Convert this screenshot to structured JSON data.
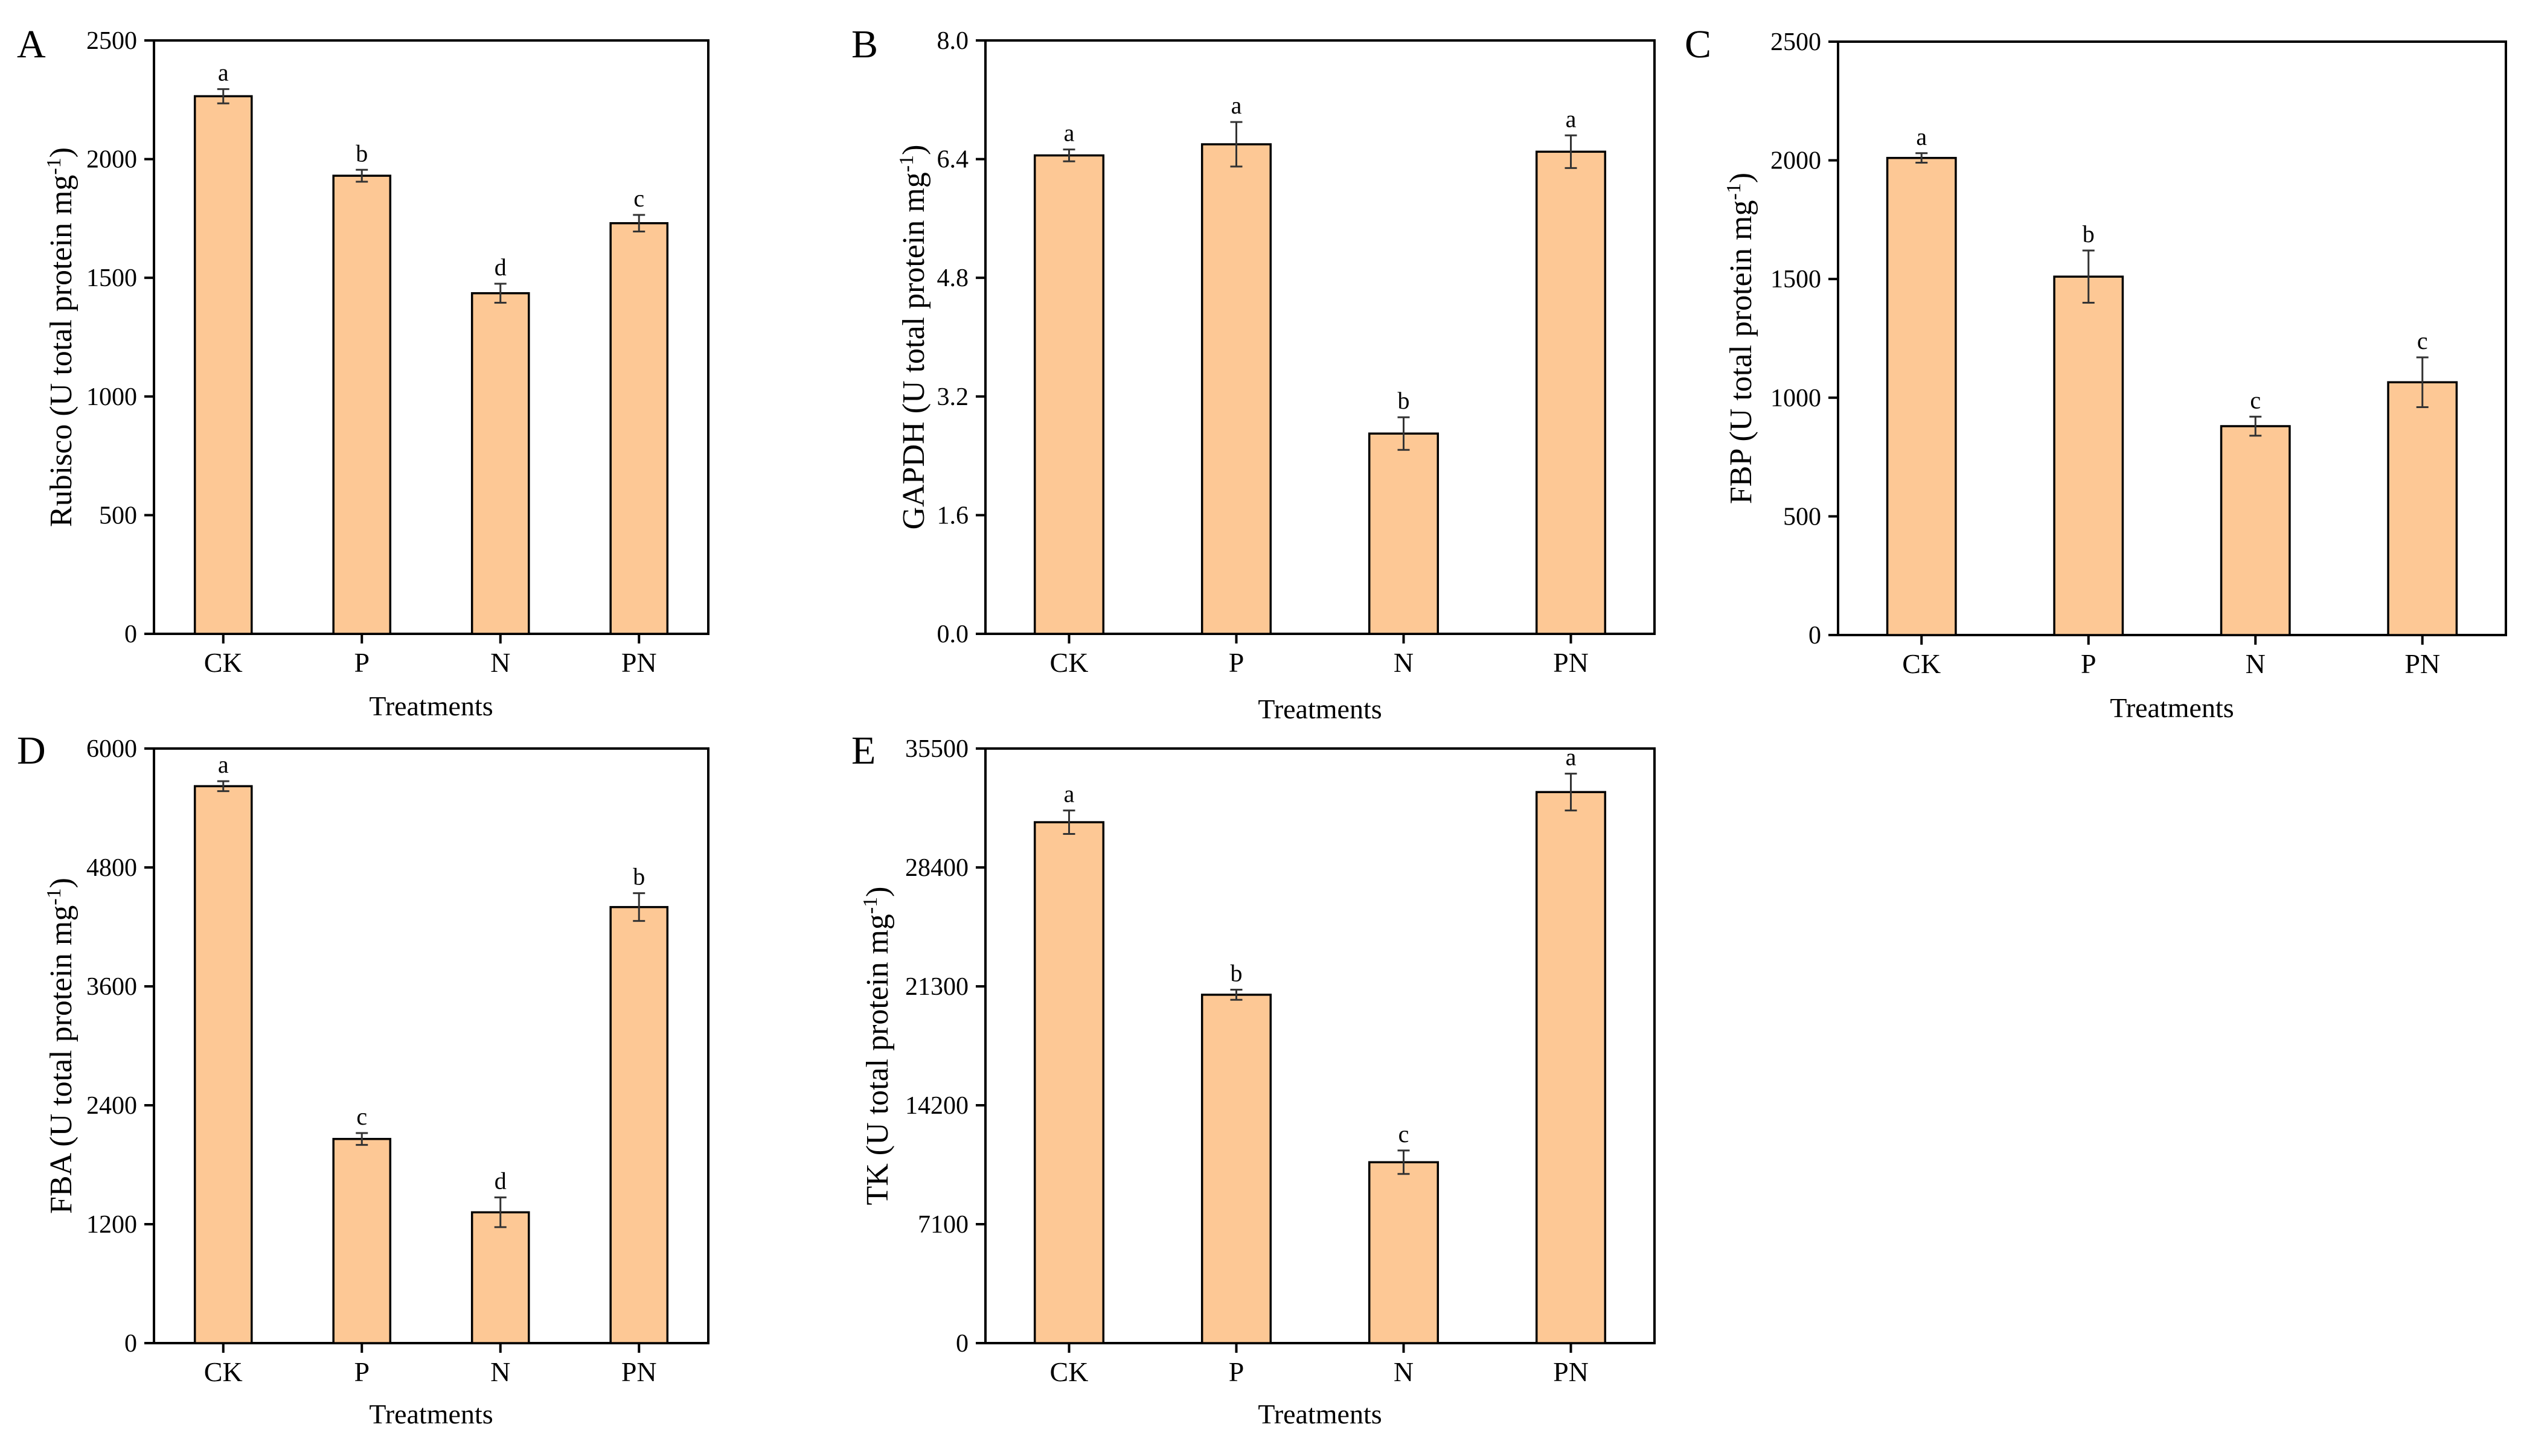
{
  "chart_data": [
    {
      "type": "bar",
      "panel": "A",
      "categories": [
        "CK",
        "P",
        "N",
        "PN"
      ],
      "values": [
        2265,
        1930,
        1435,
        1730
      ],
      "errors": [
        30,
        25,
        40,
        35
      ],
      "significance": [
        "a",
        "b",
        "d",
        "c"
      ],
      "ylabel": "Rubisco (U total protein mg",
      "ylabel_sup": "-1",
      "ylabel_close": ")",
      "xlabel": "Treatments",
      "ylim": [
        0,
        2500
      ],
      "yticks": [
        0,
        500,
        1000,
        1500,
        2000,
        2500
      ],
      "ytick_labels": [
        "0",
        "500",
        "1000",
        "1500",
        "2000",
        "2500"
      ]
    },
    {
      "type": "bar",
      "panel": "B",
      "categories": [
        "CK",
        "P",
        "N",
        "PN"
      ],
      "values": [
        6.45,
        6.6,
        2.7,
        6.5
      ],
      "errors": [
        0.08,
        0.3,
        0.22,
        0.22
      ],
      "significance": [
        "a",
        "a",
        "b",
        "a"
      ],
      "ylabel": "GAPDH (U total protein mg",
      "ylabel_sup": "-1",
      "ylabel_close": ")",
      "xlabel": "Treatments",
      "ylim": [
        0,
        8.0
      ],
      "yticks": [
        0,
        1.6,
        3.2,
        4.8,
        6.4,
        8.0
      ],
      "ytick_labels": [
        "0.0",
        "1.6",
        "3.2",
        "4.8",
        "6.4",
        "8.0"
      ]
    },
    {
      "type": "bar",
      "panel": "C",
      "categories": [
        "CK",
        "P",
        "N",
        "PN"
      ],
      "values": [
        2010,
        1510,
        880,
        1065
      ],
      "errors": [
        20,
        110,
        40,
        105
      ],
      "significance": [
        "a",
        "b",
        "c",
        "c"
      ],
      "ylabel": "FBP (U total protein mg",
      "ylabel_sup": "-1",
      "ylabel_close": ")",
      "xlabel": "Treatments",
      "ylim": [
        0,
        2500
      ],
      "yticks": [
        0,
        500,
        1000,
        1500,
        2000,
        2500
      ],
      "ytick_labels": [
        "0",
        "500",
        "1000",
        "1500",
        "2000",
        "2500"
      ]
    },
    {
      "type": "bar",
      "panel": "D",
      "categories": [
        "CK",
        "P",
        "N",
        "PN"
      ],
      "values": [
        5620,
        2060,
        1320,
        4400
      ],
      "errors": [
        50,
        60,
        150,
        140
      ],
      "significance": [
        "a",
        "c",
        "d",
        "b"
      ],
      "ylabel": "FBA (U total protein mg",
      "ylabel_sup": "-1",
      "ylabel_close": ")",
      "xlabel": "Treatments",
      "ylim": [
        0,
        6000
      ],
      "yticks": [
        0,
        1200,
        2400,
        3600,
        4800,
        6000
      ],
      "ytick_labels": [
        "0",
        "1200",
        "2400",
        "3600",
        "4800",
        "6000"
      ]
    },
    {
      "type": "bar",
      "panel": "E",
      "categories": [
        "CK",
        "P",
        "N",
        "PN"
      ],
      "values": [
        31100,
        20800,
        10800,
        32900
      ],
      "errors": [
        700,
        300,
        700,
        1100
      ],
      "significance": [
        "a",
        "b",
        "c",
        "a"
      ],
      "ylabel": "TK (U total protein mg",
      "ylabel_sup": "-1",
      "ylabel_close": ")",
      "xlabel": "Treatments",
      "ylim": [
        0,
        35500
      ],
      "yticks": [
        0,
        7100,
        14200,
        21300,
        28400,
        35500
      ],
      "ytick_labels": [
        "0",
        "7100",
        "14200",
        "21300",
        "28400",
        "35500"
      ]
    }
  ],
  "colors": {
    "bar_fill": "#FDC895",
    "bar_stroke": "#000000",
    "error": "#333333"
  }
}
